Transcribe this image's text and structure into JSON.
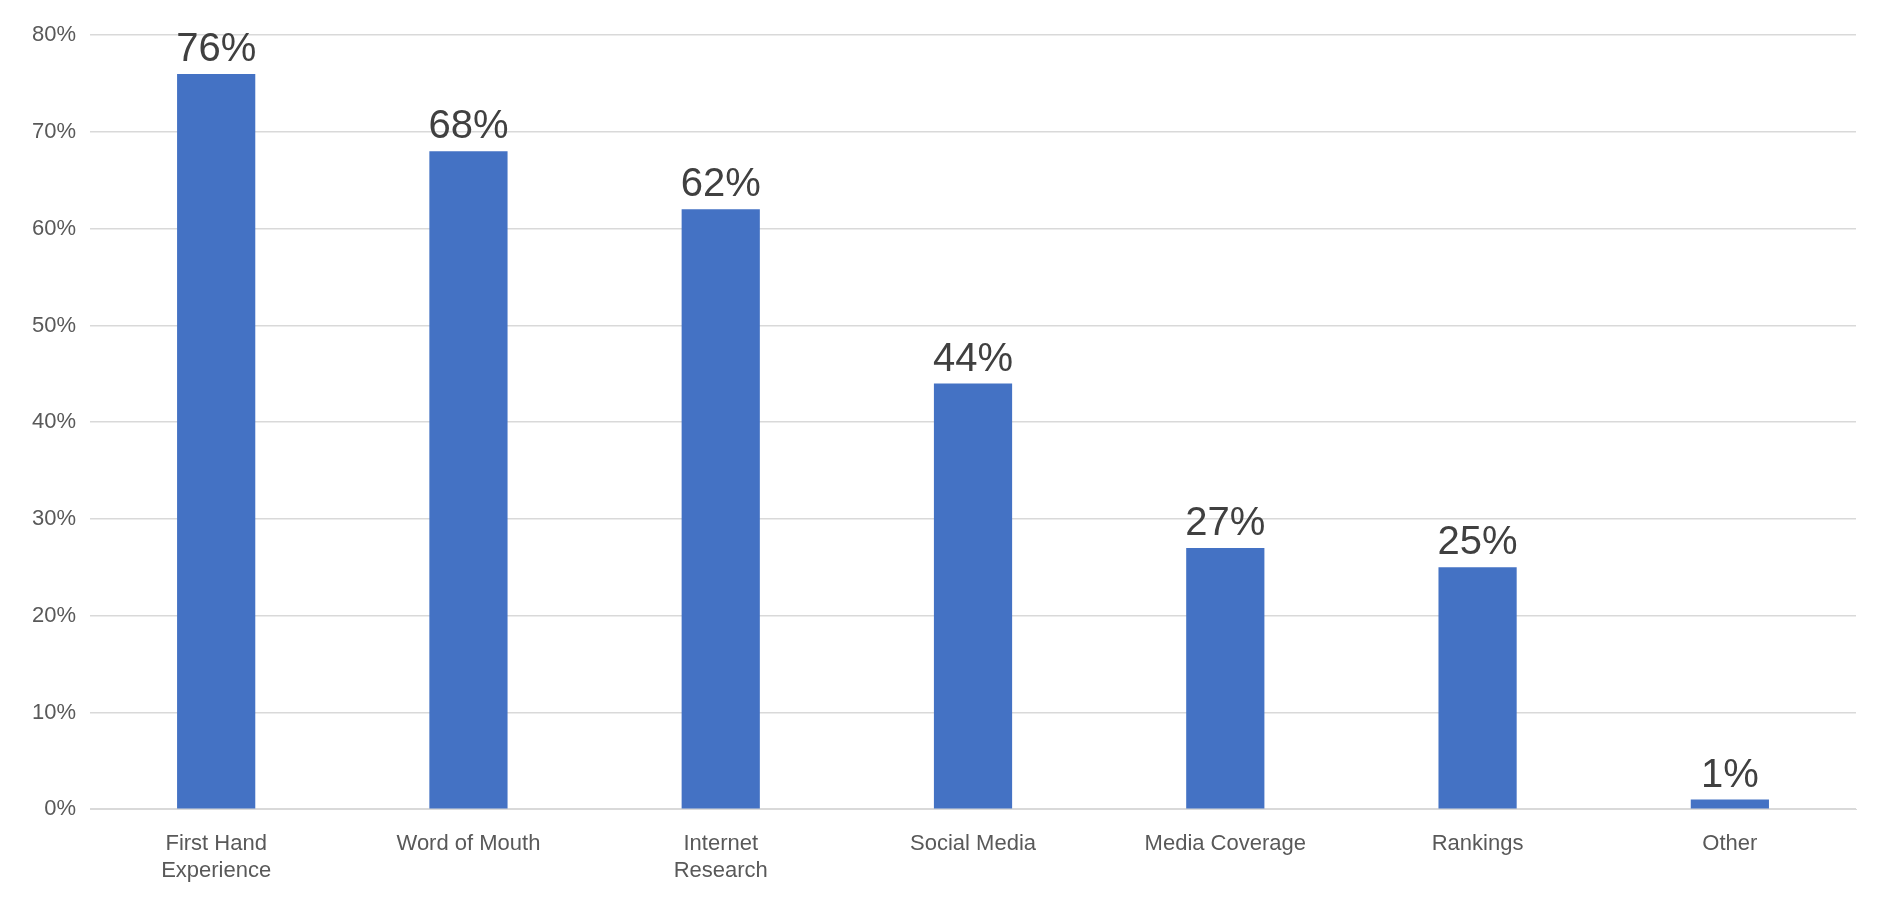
{
  "chart_data": {
    "type": "bar",
    "categories": [
      "First Hand Experience",
      "Word of Mouth",
      "Internet Research",
      "Social Media",
      "Media Coverage",
      "Rankings",
      "Other"
    ],
    "values": [
      76,
      68,
      62,
      44,
      27,
      25,
      1
    ],
    "value_labels": [
      "76%",
      "68%",
      "62%",
      "44%",
      "27%",
      "25%",
      "1%"
    ],
    "color": "#4472c4",
    "ylim": [
      0,
      80
    ],
    "yticks": [
      {
        "value": 0,
        "label": "0%"
      },
      {
        "value": 10,
        "label": "10%"
      },
      {
        "value": 20,
        "label": "20%"
      },
      {
        "value": 30,
        "label": "30%"
      },
      {
        "value": 40,
        "label": "40%"
      },
      {
        "value": 50,
        "label": "50%"
      },
      {
        "value": 60,
        "label": "60%"
      },
      {
        "value": 70,
        "label": "70%"
      },
      {
        "value": 80,
        "label": "80%"
      }
    ],
    "grid": "y",
    "legend": false
  }
}
